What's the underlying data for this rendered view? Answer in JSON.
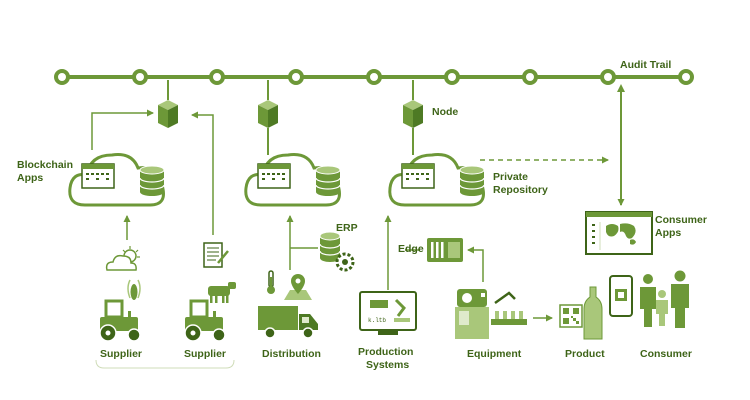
{
  "labels": {
    "audit_trail": "Audit Trail",
    "blockchain_apps_1": "Blockchain",
    "blockchain_apps_2": "Apps",
    "node": "Node",
    "private_repo_1": "Private",
    "private_repo_2": "Repository",
    "erp": "ERP",
    "edge": "Edge",
    "consumer_apps_1": "Consumer",
    "consumer_apps_2": "Apps",
    "supplier_1": "Supplier",
    "supplier_2": "Supplier",
    "distribution": "Distribution",
    "production_1": "Production",
    "production_2": "Systems",
    "equipment": "Equipment",
    "product": "Product",
    "consumer": "Consumer",
    "screen_text": "k.ltb"
  },
  "colors": {
    "primary": "#6d9838",
    "dark": "#3e6418",
    "light": "#a9c77a",
    "pale": "#dfeacb",
    "white": "#ffffff"
  },
  "icons": [
    "chain-node-icon",
    "blockchain-cube-icon",
    "cloud-icon",
    "database-icon",
    "weather-icon",
    "document-icon",
    "tractor-icon",
    "corn-icon",
    "cow-icon",
    "thermometer-icon",
    "map-pin-icon",
    "truck-icon",
    "erp-database-icon",
    "gear-icon",
    "edge-device-icon",
    "robot-monitor-icon",
    "machine-icon",
    "qr-code-icon",
    "bottle-icon",
    "world-map-icon",
    "phone-icon",
    "person-icon"
  ]
}
